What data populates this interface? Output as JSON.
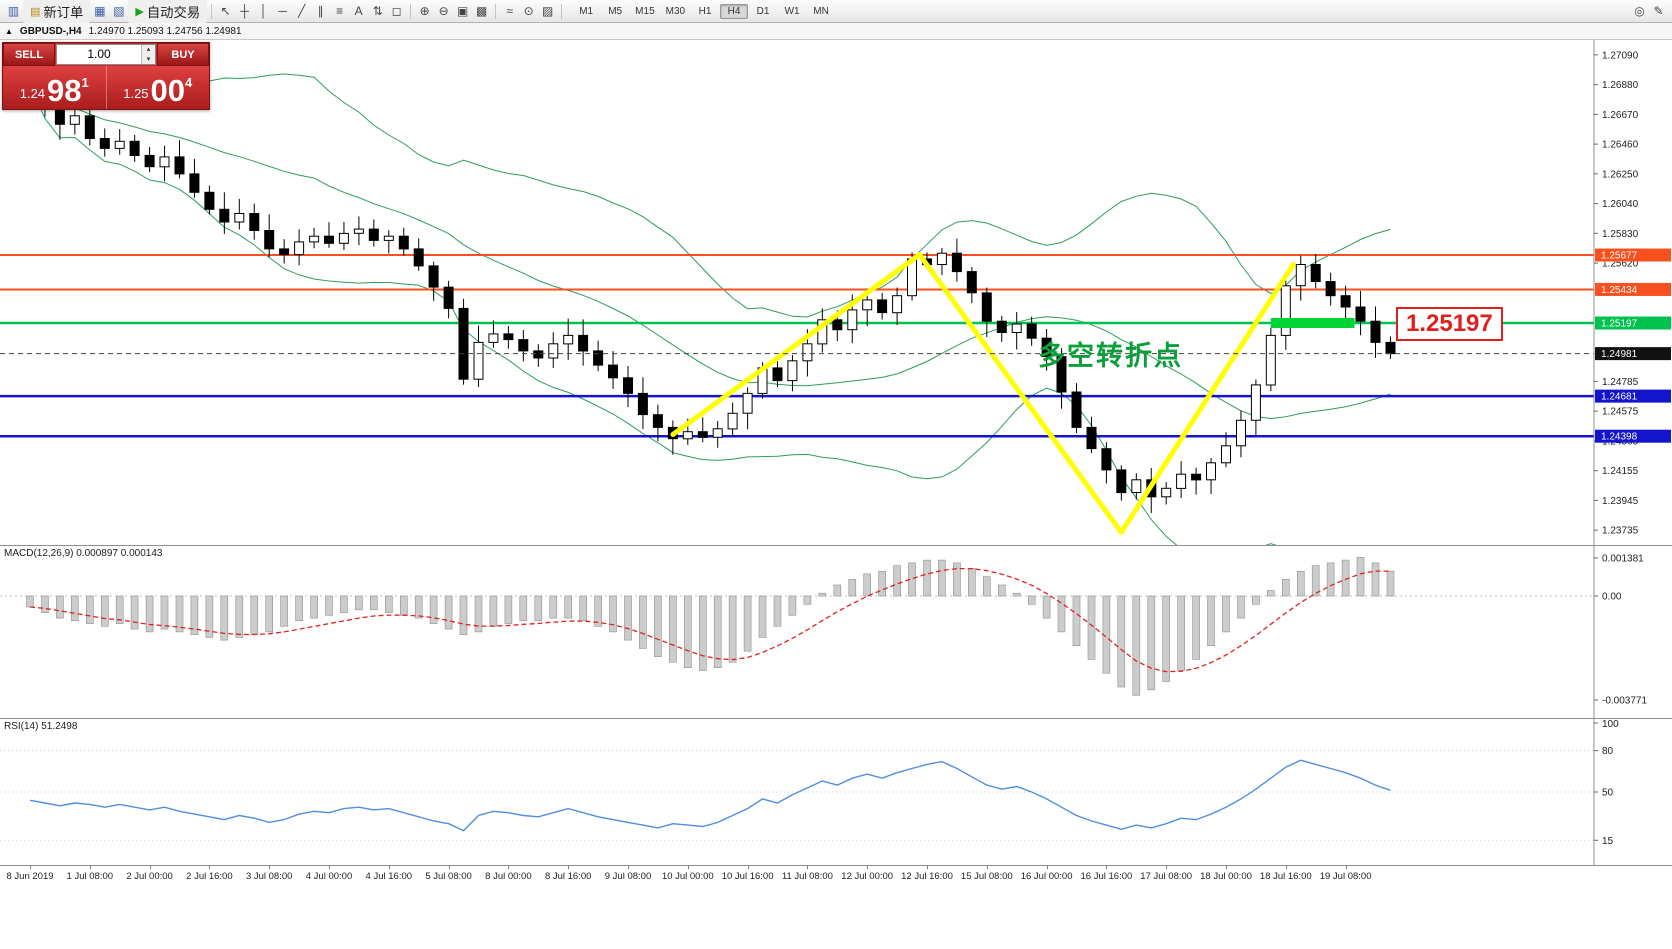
{
  "toolbar": {
    "new_order_label": "新订单",
    "auto_trading_label": "自动交易",
    "timeframes": [
      "M1",
      "M5",
      "M15",
      "M30",
      "H1",
      "H4",
      "D1",
      "W1",
      "MN"
    ],
    "active_timeframe": "H4",
    "icons": {
      "app": "▥",
      "new_order": "▤",
      "profiles": "▦",
      "market_watch": "▧",
      "play": "▶",
      "cursor": "↖",
      "crosshair": "┼",
      "vline": "│",
      "hline": "─",
      "trendline": "╱",
      "channel": "∥",
      "fibonacci": "≡",
      "text": "A",
      "arrows": "⇅",
      "shapes": "◻",
      "zoom_in": "⊕",
      "zoom_out": "⊖",
      "tile": "▣",
      "cascade": "▩",
      "indicators": "≈",
      "periods": "⊙",
      "templates": "▨",
      "search": "◎",
      "edit": "✎",
      "spinner_up": "▴",
      "spinner_down": "▾",
      "tab_arrow": "▲"
    }
  },
  "ohlc_strip": {
    "symbol": "GBPUSD-,H4",
    "values": "1.24970 1.25093 1.24756 1.24981"
  },
  "trade_panel": {
    "sell_label": "SELL",
    "buy_label": "BUY",
    "volume": "1.00",
    "sell_price": {
      "small": "1.24",
      "big": "98",
      "sup": "1"
    },
    "buy_price": {
      "small": "1.25",
      "big": "00",
      "sup": "4"
    }
  },
  "chart": {
    "annotation": "多空转折点",
    "big_price_callout": "1.25197"
  },
  "macd": {
    "label": "MACD(12,26,9) 0.000897 0.000143",
    "axis": [
      {
        "text": "0.001381",
        "value": 0.001381
      },
      {
        "text": "0.00",
        "value": 0
      },
      {
        "text": "-0.003771",
        "value": -0.003771
      }
    ]
  },
  "rsi": {
    "label": "RSI(14) 51.2498",
    "axis": [
      {
        "text": "100",
        "value": 100
      },
      {
        "text": "80",
        "value": 80
      },
      {
        "text": "50",
        "value": 50
      },
      {
        "text": "15",
        "value": 15
      }
    ]
  },
  "chart_data": {
    "type": "candlestick",
    "symbol": "GBPUSD-",
    "timeframe": "H4",
    "current_price": 1.24981,
    "current_price_label": "1.24981",
    "price_range": [
      1.2363,
      1.27195
    ],
    "y_ticks": [
      "1.27090",
      "1.26880",
      "1.26670",
      "1.26460",
      "1.26250",
      "1.26040",
      "1.25830",
      "1.25620",
      "1.24785",
      "1.24575",
      "1.24365",
      "1.24155",
      "1.23945",
      "1.23735"
    ],
    "x_labels": [
      "8 Jun 2019",
      "1 Jul 08:00",
      "2 Jul 00:00",
      "2 Jul 16:00",
      "3 Jul 08:00",
      "4 Jul 00:00",
      "4 Jul 16:00",
      "5 Jul 08:00",
      "8 Jul 00:00",
      "8 Jul 16:00",
      "9 Jul 08:00",
      "10 Jul 00:00",
      "10 Jul 16:00",
      "11 Jul 08:00",
      "12 Jul 00:00",
      "12 Jul 16:00",
      "15 Jul 08:00",
      "16 Jul 00:00",
      "16 Jul 16:00",
      "17 Jul 08:00",
      "18 Jul 00:00",
      "18 Jul 16:00",
      "19 Jul 08:00"
    ],
    "levels": [
      {
        "price": 1.25677,
        "label": "1.25677",
        "color": "#f8501e",
        "width": 2
      },
      {
        "price": 1.25434,
        "label": "1.25434",
        "color": "#f8501e",
        "width": 2
      },
      {
        "price": 1.25197,
        "label": "1.25197",
        "color": "#00c24e",
        "width": 2.5
      },
      {
        "price": 1.24681,
        "label": "1.24681",
        "color": "#1414cc",
        "width": 2.5
      },
      {
        "price": 1.24398,
        "label": "1.24398",
        "color": "#1414cc",
        "width": 2.5
      }
    ],
    "green_bar": {
      "start_bar": 83,
      "end_bar": 88.6,
      "price": 1.25197,
      "color": "#00d435"
    },
    "zigzag": {
      "color": "#ffff00",
      "points": [
        {
          "bar": 43,
          "price": 1.2441
        },
        {
          "bar": 59.5,
          "price": 1.2568
        },
        {
          "bar": 73,
          "price": 1.2372
        },
        {
          "bar": 84.5,
          "price": 1.2561
        }
      ]
    },
    "candles_close": [
      1.2688,
      1.2672,
      1.266,
      1.2666,
      1.265,
      1.2643,
      1.2648,
      1.2638,
      1.263,
      1.2637,
      1.2625,
      1.2612,
      1.26,
      1.2591,
      1.2597,
      1.2585,
      1.2572,
      1.2568,
      1.2577,
      1.2581,
      1.2576,
      1.2583,
      1.2586,
      1.2578,
      1.2581,
      1.2572,
      1.256,
      1.2545,
      1.253,
      1.248,
      1.2506,
      1.2512,
      1.2508,
      1.25,
      1.2495,
      1.2505,
      1.2511,
      1.25,
      1.249,
      1.2481,
      1.247,
      1.2455,
      1.2446,
      1.2438,
      1.2443,
      1.2439,
      1.2445,
      1.2456,
      1.247,
      1.2488,
      1.2479,
      1.2493,
      1.2505,
      1.2522,
      1.2515,
      1.2529,
      1.2536,
      1.2527,
      1.2539,
      1.2565,
      1.2561,
      1.2569,
      1.2556,
      1.2541,
      1.2521,
      1.2513,
      1.2519,
      1.2509,
      1.2496,
      1.2471,
      1.2446,
      1.2431,
      1.2416,
      1.24,
      1.2409,
      1.2397,
      1.2403,
      1.2413,
      1.2409,
      1.2421,
      1.2433,
      1.2451,
      1.2476,
      1.2511,
      1.2546,
      1.2561,
      1.2549,
      1.2539,
      1.2531,
      1.2521,
      1.2506,
      1.24981
    ],
    "macd_hist": [
      -0.0004,
      -0.0006,
      -0.0008,
      -0.0009,
      -0.001,
      -0.0011,
      -0.001,
      -0.0012,
      -0.0013,
      -0.0012,
      -0.0013,
      -0.0014,
      -0.0015,
      -0.0016,
      -0.0015,
      -0.0014,
      -0.0013,
      -0.0011,
      -0.0009,
      -0.0008,
      -0.0007,
      -0.0006,
      -0.0005,
      -0.0005,
      -0.0006,
      -0.0007,
      -0.0008,
      -0.001,
      -0.0012,
      -0.0014,
      -0.0013,
      -0.0011,
      -0.001,
      -0.0009,
      -0.0009,
      -0.0008,
      -0.0008,
      -0.0009,
      -0.0011,
      -0.0013,
      -0.0016,
      -0.0019,
      -0.0022,
      -0.0024,
      -0.0026,
      -0.0027,
      -0.0026,
      -0.0024,
      -0.002,
      -0.0015,
      -0.0011,
      -0.0007,
      -0.0003,
      0.0001,
      0.0004,
      0.0006,
      0.0008,
      0.0009,
      0.0011,
      0.0012,
      0.0013,
      0.0013,
      0.0012,
      0.001,
      0.0007,
      0.0004,
      0.0001,
      -0.0003,
      -0.0008,
      -0.0013,
      -0.0018,
      -0.0023,
      -0.0028,
      -0.0033,
      -0.0036,
      -0.0034,
      -0.0031,
      -0.0027,
      -0.0023,
      -0.0018,
      -0.0013,
      -0.0008,
      -0.0003,
      0.0002,
      0.0006,
      0.0009,
      0.0011,
      0.0012,
      0.0013,
      0.0014,
      0.0012,
      0.0009
    ],
    "rsi": [
      44,
      42,
      40,
      42,
      41,
      39,
      41,
      39,
      37,
      39,
      36,
      34,
      32,
      30,
      33,
      31,
      28,
      30,
      34,
      36,
      35,
      38,
      39,
      37,
      38,
      35,
      32,
      29,
      27,
      22,
      33,
      36,
      35,
      33,
      32,
      35,
      38,
      35,
      32,
      30,
      28,
      26,
      24,
      27,
      26,
      25,
      28,
      33,
      38,
      45,
      42,
      48,
      53,
      58,
      55,
      60,
      63,
      60,
      64,
      67,
      70,
      72,
      67,
      61,
      55,
      52,
      54,
      50,
      45,
      39,
      33,
      29,
      26,
      23,
      26,
      24,
      27,
      31,
      30,
      34,
      39,
      45,
      52,
      60,
      68,
      73,
      70,
      67,
      64,
      60,
      55,
      51.25
    ]
  }
}
